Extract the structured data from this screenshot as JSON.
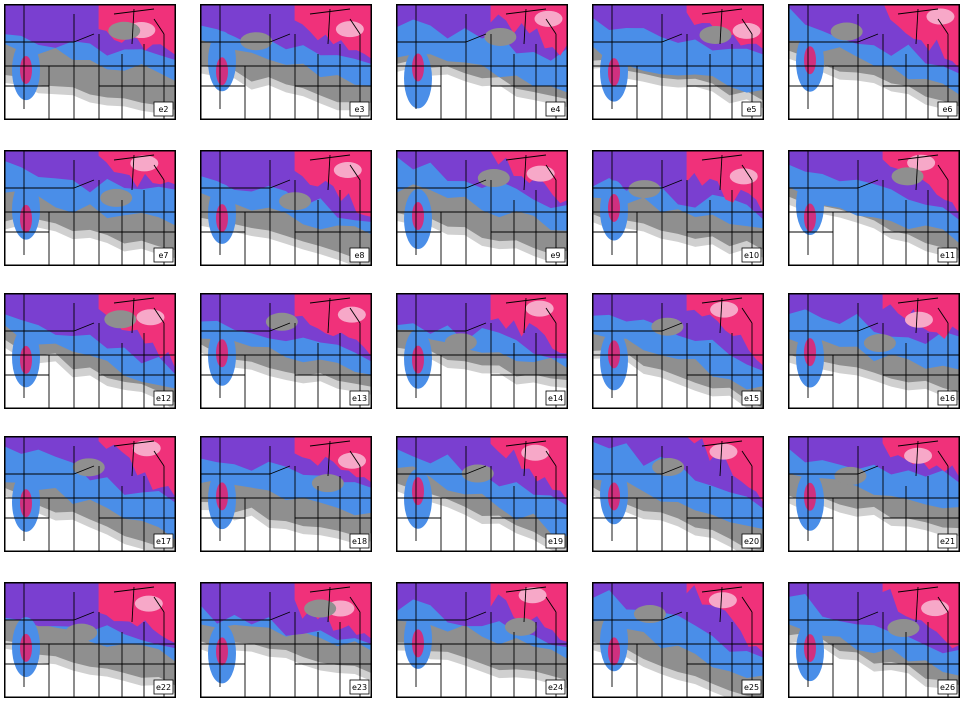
{
  "panels": [
    "e2",
    "e3",
    "e4",
    "e5",
    "e6",
    "e7",
    "e8",
    "e9",
    "e10",
    "e11",
    "e12",
    "e13",
    "e14",
    "e15",
    "e16",
    "e17",
    "e18",
    "e19",
    "e20",
    "e21",
    "e22",
    "e23",
    "e24",
    "e25",
    "e26"
  ]
}
